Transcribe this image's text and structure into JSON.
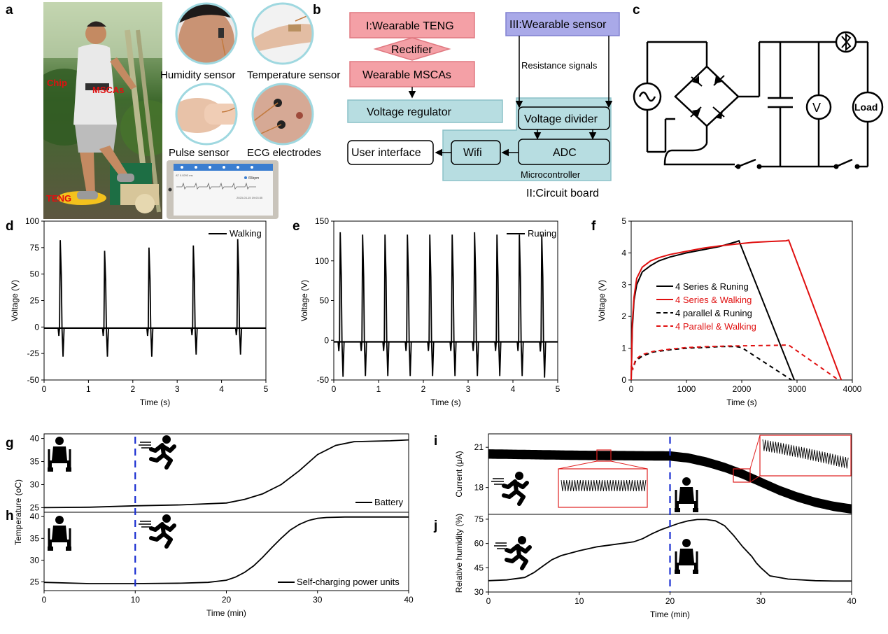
{
  "panels": {
    "a": "a",
    "b": "b",
    "c": "c",
    "d": "d",
    "e": "e",
    "f": "f",
    "g": "g",
    "h": "h",
    "i": "i",
    "j": "j"
  },
  "panel_a": {
    "photo_labels": {
      "chip": "Chip",
      "mscas": "MSCAs",
      "teng": "TENG"
    },
    "sensor_captions": {
      "humidity": "Humidity sensor",
      "temperature": "Temperature sensor",
      "pulse": "Pulse sensor",
      "ecg": "ECG electrodes"
    },
    "phone_texts": {
      "bpm": "65bpm",
      "date": "2023-03-15 19:03:35",
      "header_small": "AT 0.0293 ms"
    }
  },
  "panel_b": {
    "boxes": {
      "teng": "I:Wearable TENG",
      "rectifier": "Rectifier",
      "mscas": "Wearable MSCAs",
      "regulator": "Voltage regulator",
      "sensor": "III:Wearable sensor",
      "resistance": "Resistance signals",
      "divider": "Voltage divider",
      "adc": "ADC",
      "wifi": "Wifi",
      "ui": "User interface",
      "micro": "Microcontroller",
      "board": "II:Circuit board"
    },
    "colors": {
      "red_fill": "#f4a0a6",
      "red_edge": "#e07880",
      "blue_fill": "#a9a9e8",
      "blue_edge": "#8080d0",
      "teal_fill": "#b7dde1",
      "teal_edge": "#8cc2c8"
    }
  },
  "panel_c": {
    "load": "Load",
    "volt": "V"
  },
  "chart_data": [
    {
      "id": "d",
      "type": "line",
      "xlabel": "Time (s)",
      "ylabel": "Voltage (V)",
      "xlim": [
        0,
        5
      ],
      "ylim": [
        -50,
        100
      ],
      "xticks": [
        0,
        1,
        2,
        3,
        4,
        5
      ],
      "yticks": [
        -50,
        -25,
        0,
        25,
        50,
        75,
        100
      ],
      "series": [
        {
          "name": "Walking",
          "color": "#000000",
          "spike_times": [
            0.38,
            1.38,
            2.38,
            3.38,
            4.38
          ],
          "peaks": [
            82,
            72,
            75,
            77,
            83
          ],
          "troughs": [
            -28,
            -28,
            -28,
            -26,
            -26
          ],
          "baseline": -1
        }
      ]
    },
    {
      "id": "e",
      "type": "line",
      "xlabel": "Time (s)",
      "ylabel": "Voltage (V)",
      "xlim": [
        0,
        5
      ],
      "ylim": [
        -50,
        150
      ],
      "xticks": [
        0,
        1,
        2,
        3,
        4,
        5
      ],
      "yticks": [
        -50,
        0,
        50,
        100,
        150
      ],
      "series": [
        {
          "name": "Runing",
          "color": "#000000",
          "spike_times": [
            0.16,
            0.66,
            1.16,
            1.66,
            2.16,
            2.66,
            3.16,
            3.66,
            4.16,
            4.66
          ],
          "peaks": [
            136,
            133,
            133,
            133,
            133,
            133,
            136,
            133,
            133,
            133
          ],
          "troughs": [
            -46,
            -45,
            -45,
            -45,
            -45,
            -45,
            -45,
            -45,
            -45,
            -47
          ],
          "baseline": -2
        }
      ]
    },
    {
      "id": "f",
      "type": "line",
      "xlabel": "Time (s)",
      "ylabel": "Voltage (V)",
      "xlim": [
        0,
        4000
      ],
      "ylim": [
        0,
        5
      ],
      "xticks": [
        0,
        1000,
        2000,
        3000,
        4000
      ],
      "yticks": [
        0,
        1,
        2,
        3,
        4,
        5
      ],
      "series": [
        {
          "name": "4 Series & Runing",
          "color": "#000000",
          "dash": false,
          "x": [
            0,
            20,
            50,
            100,
            200,
            350,
            500,
            700,
            1000,
            1300,
            1600,
            1900,
            1950,
            2950
          ],
          "y": [
            0,
            1.6,
            2.5,
            3.0,
            3.4,
            3.6,
            3.75,
            3.87,
            4.0,
            4.1,
            4.2,
            4.35,
            4.38,
            0
          ]
        },
        {
          "name": "4 Series & Walking",
          "color": "#e01010",
          "dash": false,
          "x": [
            0,
            20,
            50,
            100,
            200,
            350,
            500,
            700,
            1000,
            1300,
            1600,
            1900,
            2200,
            2500,
            2800,
            2850,
            3800
          ],
          "y": [
            0,
            1.8,
            2.6,
            3.2,
            3.55,
            3.75,
            3.85,
            3.95,
            4.05,
            4.15,
            4.22,
            4.28,
            4.33,
            4.36,
            4.38,
            4.4,
            0
          ]
        },
        {
          "name": "4 parallel & Runing",
          "color": "#000000",
          "dash": true,
          "x": [
            0,
            30,
            80,
            200,
            400,
            700,
            1000,
            1300,
            1600,
            1900,
            2000,
            2900
          ],
          "y": [
            0.45,
            0.35,
            0.6,
            0.75,
            0.88,
            0.95,
            1.0,
            1.02,
            1.05,
            1.05,
            1.02,
            0
          ]
        },
        {
          "name": "4 Parallel & Walking",
          "color": "#e01010",
          "dash": true,
          "x": [
            0,
            30,
            80,
            200,
            400,
            700,
            1000,
            1400,
            1800,
            2200,
            2600,
            2850,
            3750
          ],
          "y": [
            0.45,
            0.35,
            0.65,
            0.8,
            0.9,
            0.97,
            1.02,
            1.05,
            1.07,
            1.08,
            1.09,
            1.1,
            0
          ]
        }
      ]
    },
    {
      "id": "g",
      "type": "line",
      "xlabel": "",
      "ylabel": "",
      "xlim": [
        0,
        40
      ],
      "ylim": [
        24,
        41
      ],
      "yticks": [
        25,
        30,
        35,
        40
      ],
      "series": [
        {
          "name": "Battery",
          "color": "#000000",
          "x": [
            0,
            5,
            10,
            15,
            20,
            22,
            24,
            26,
            28,
            30,
            32,
            34,
            36,
            38,
            40
          ],
          "y": [
            25.0,
            25.1,
            25.4,
            25.6,
            26.0,
            26.8,
            28.0,
            30.0,
            33.0,
            36.5,
            38.5,
            39.3,
            39.4,
            39.5,
            39.7
          ]
        }
      ]
    },
    {
      "id": "h",
      "type": "line",
      "xlabel": "Time (min)",
      "ylabel": "Temperature (oC)",
      "xlim": [
        0,
        40
      ],
      "ylim": [
        23,
        41
      ],
      "xticks": [
        0,
        10,
        20,
        30,
        40
      ],
      "yticks": [
        25,
        30,
        35,
        40
      ],
      "series": [
        {
          "name": "Self-charging power units",
          "color": "#000000",
          "x": [
            0,
            5,
            10,
            15,
            18,
            20,
            21,
            22,
            23,
            24,
            25,
            26,
            27,
            28,
            29,
            30,
            31,
            33,
            36,
            40
          ],
          "y": [
            24.9,
            24.6,
            24.6,
            24.7,
            24.9,
            25.4,
            26.1,
            27.2,
            28.7,
            30.7,
            32.9,
            35.0,
            36.9,
            38.2,
            39.1,
            39.6,
            39.8,
            39.9,
            39.9,
            39.9
          ]
        }
      ]
    },
    {
      "id": "i",
      "type": "line",
      "xlabel": "",
      "ylabel": "Current (μA)",
      "xlim": [
        0,
        40
      ],
      "ylim": [
        16,
        22
      ],
      "yticks": [
        18,
        21
      ],
      "series": [
        {
          "name": "",
          "color": "#000000",
          "x": [
            0,
            10,
            20,
            22,
            24,
            26,
            28,
            30,
            32,
            34,
            36,
            38,
            40
          ],
          "y": [
            20.5,
            20.4,
            20.35,
            20.2,
            19.9,
            19.5,
            19.0,
            18.4,
            17.8,
            17.3,
            16.9,
            16.6,
            16.4
          ]
        }
      ]
    },
    {
      "id": "j",
      "type": "line",
      "xlabel": "Time (min)",
      "ylabel": "Relative humidity (%)",
      "xlim": [
        0,
        40
      ],
      "ylim": [
        30,
        78
      ],
      "xticks": [
        0,
        10,
        20,
        30,
        40
      ],
      "yticks": [
        30,
        45,
        60,
        75
      ],
      "series": [
        {
          "name": "",
          "color": "#000000",
          "x": [
            0,
            2,
            4,
            5,
            6,
            7,
            8,
            10,
            12,
            14,
            16,
            17,
            18,
            19,
            20,
            21,
            22,
            23,
            24,
            25,
            26,
            27,
            28,
            29,
            29.5,
            30,
            31,
            33,
            36,
            38,
            40
          ],
          "y": [
            37,
            37.5,
            39,
            42,
            46,
            50,
            52.5,
            55.5,
            58,
            59.5,
            61,
            63,
            66,
            68.5,
            70.5,
            72.5,
            74,
            74.8,
            74.8,
            74,
            71,
            65,
            58,
            52,
            48,
            45,
            40,
            38,
            37,
            36.8,
            36.8
          ]
        }
      ]
    }
  ]
}
